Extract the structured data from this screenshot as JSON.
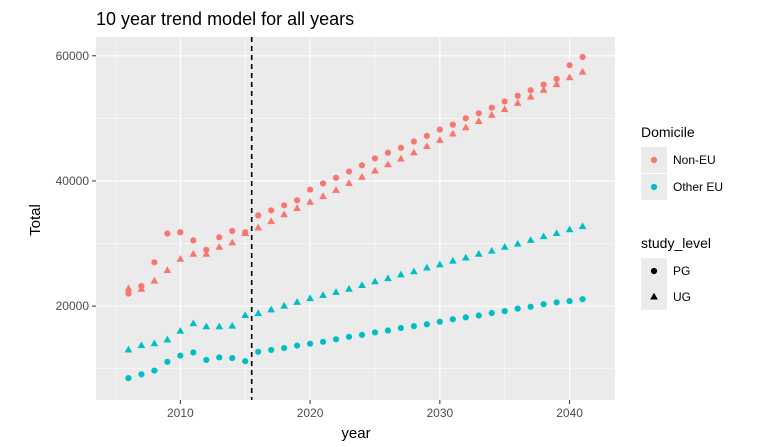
{
  "chart_data": {
    "type": "scatter",
    "title": "10 year trend model for all years",
    "xlabel": "year",
    "ylabel": "Total",
    "xlim": [
      2003.5,
      2043.5
    ],
    "ylim": [
      5000,
      63000
    ],
    "x_ticks": [
      2010,
      2020,
      2030,
      2040
    ],
    "y_ticks": [
      20000,
      40000,
      60000
    ],
    "x_tick_labels": [
      "2010",
      "2020",
      "2030",
      "2040"
    ],
    "y_tick_labels": [
      "20000",
      "40000",
      "60000"
    ],
    "vline": {
      "x": 2015.5,
      "style": "dashed",
      "color": "#000000"
    },
    "grid": true,
    "panel_background": "#ebebeb",
    "legend_position": "right",
    "color_legend": {
      "title": "Domicile",
      "entries": [
        {
          "label": "Non-EU",
          "color": "#f8766d"
        },
        {
          "label": "Other EU",
          "color": "#00bfc4"
        }
      ]
    },
    "shape_legend": {
      "title": "study_level",
      "entries": [
        {
          "label": "PG",
          "shape": "circle"
        },
        {
          "label": "UG",
          "shape": "triangle"
        }
      ]
    },
    "series": [
      {
        "domicile": "Non-EU",
        "study_level": "PG",
        "color": "#f8766d",
        "shape": "circle",
        "x": [
          2006,
          2007,
          2008,
          2009,
          2010,
          2011,
          2012,
          2013,
          2014,
          2015,
          2016,
          2017,
          2018,
          2019,
          2020,
          2021,
          2022,
          2023,
          2024,
          2025,
          2026,
          2027,
          2028,
          2029,
          2030,
          2031,
          2032,
          2033,
          2034,
          2035,
          2036,
          2037,
          2038,
          2039,
          2040,
          2041
        ],
        "y": [
          22000,
          23200,
          27000,
          31600,
          31800,
          30500,
          29000,
          31000,
          32000,
          31800,
          34500,
          35300,
          36100,
          36900,
          38600,
          39600,
          40500,
          41500,
          42500,
          43600,
          44500,
          45300,
          46300,
          47200,
          48200,
          49000,
          50000,
          50800,
          51700,
          52700,
          53600,
          54500,
          55400,
          56300,
          58500,
          59800
        ]
      },
      {
        "domicile": "Non-EU",
        "study_level": "UG",
        "color": "#f8766d",
        "shape": "triangle",
        "x": [
          2006,
          2007,
          2008,
          2009,
          2010,
          2011,
          2012,
          2013,
          2014,
          2015,
          2016,
          2017,
          2018,
          2019,
          2020,
          2021,
          2022,
          2023,
          2024,
          2025,
          2026,
          2027,
          2028,
          2029,
          2030,
          2031,
          2032,
          2033,
          2034,
          2035,
          2036,
          2037,
          2038,
          2039,
          2040,
          2041
        ],
        "y": [
          22800,
          22700,
          24000,
          25700,
          27500,
          28300,
          28300,
          29400,
          30100,
          31600,
          32500,
          33500,
          34600,
          35600,
          36600,
          37500,
          38500,
          39600,
          40600,
          41600,
          42600,
          43500,
          44500,
          45500,
          46500,
          47500,
          48500,
          49500,
          50500,
          51400,
          52400,
          53400,
          54500,
          55400,
          56500,
          57400
        ]
      },
      {
        "domicile": "Other EU",
        "study_level": "PG",
        "color": "#00bfc4",
        "shape": "circle",
        "x": [
          2006,
          2007,
          2008,
          2009,
          2010,
          2011,
          2012,
          2013,
          2014,
          2015,
          2016,
          2017,
          2018,
          2019,
          2020,
          2021,
          2022,
          2023,
          2024,
          2025,
          2026,
          2027,
          2028,
          2029,
          2030,
          2031,
          2032,
          2033,
          2034,
          2035,
          2036,
          2037,
          2038,
          2039,
          2040,
          2041
        ],
        "y": [
          8500,
          9100,
          9700,
          11100,
          12100,
          12600,
          11400,
          11800,
          11700,
          11200,
          12700,
          13000,
          13300,
          13700,
          14000,
          14300,
          14700,
          15100,
          15400,
          15800,
          16100,
          16500,
          16800,
          17100,
          17500,
          17900,
          18200,
          18500,
          18900,
          19200,
          19600,
          19900,
          20300,
          20600,
          20800,
          21100
        ]
      },
      {
        "domicile": "Other EU",
        "study_level": "UG",
        "color": "#00bfc4",
        "shape": "triangle",
        "x": [
          2006,
          2007,
          2008,
          2009,
          2010,
          2011,
          2012,
          2013,
          2014,
          2015,
          2016,
          2017,
          2018,
          2019,
          2020,
          2021,
          2022,
          2023,
          2024,
          2025,
          2026,
          2027,
          2028,
          2029,
          2030,
          2031,
          2032,
          2033,
          2034,
          2035,
          2036,
          2037,
          2038,
          2039,
          2040,
          2041
        ],
        "y": [
          13000,
          13700,
          14000,
          14600,
          16000,
          17200,
          16700,
          16700,
          16800,
          18500,
          18800,
          19400,
          20000,
          20600,
          21200,
          21700,
          22200,
          22700,
          23300,
          23900,
          24400,
          25000,
          25500,
          26100,
          26600,
          27200,
          27700,
          28300,
          28800,
          29400,
          29900,
          30500,
          31100,
          31600,
          32200,
          32700
        ]
      }
    ]
  }
}
